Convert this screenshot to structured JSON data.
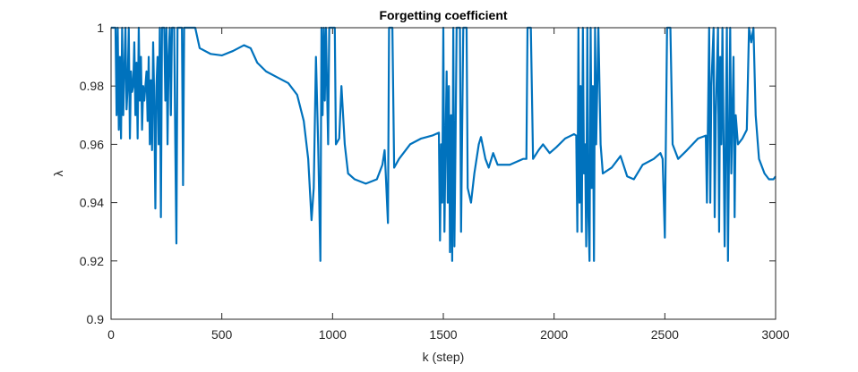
{
  "chart_data": {
    "type": "line",
    "title": "Forgetting coefficient",
    "x_label": "k (step)",
    "y_label": "λ",
    "xlim": [
      0,
      3000
    ],
    "xticks": [
      0,
      500,
      1000,
      1500,
      2000,
      2500,
      3000
    ],
    "ylim": [
      0.9,
      1
    ],
    "yticks": [
      0.9,
      0.92,
      0.94,
      0.96,
      0.98,
      1
    ],
    "series": [
      {
        "color": "#0072bd",
        "x": [
          0,
          20,
          25,
          30,
          35,
          40,
          45,
          50,
          55,
          60,
          65,
          70,
          75,
          80,
          85,
          90,
          95,
          100,
          105,
          110,
          115,
          120,
          125,
          130,
          135,
          140,
          145,
          150,
          160,
          165,
          170,
          175,
          180,
          185,
          190,
          195,
          200,
          205,
          210,
          215,
          220,
          225,
          230,
          240,
          245,
          250,
          255,
          260,
          265,
          270,
          275,
          285,
          290,
          295,
          300,
          320,
          325,
          330,
          340,
          380,
          400,
          450,
          500,
          550,
          600,
          630,
          660,
          700,
          750,
          800,
          840,
          870,
          890,
          905,
          915,
          925,
          935,
          945,
          950,
          955,
          960,
          965,
          970,
          975,
          980,
          985,
          1010,
          1015,
          1030,
          1040,
          1055,
          1070,
          1100,
          1150,
          1200,
          1225,
          1235,
          1240,
          1250,
          1255,
          1270,
          1278,
          1300,
          1350,
          1400,
          1450,
          1480,
          1485,
          1490,
          1495,
          1500,
          1505,
          1510,
          1515,
          1520,
          1525,
          1530,
          1535,
          1540,
          1545,
          1550,
          1555,
          1560,
          1575,
          1580,
          1590,
          1605,
          1610,
          1625,
          1640,
          1660,
          1670,
          1690,
          1705,
          1725,
          1745,
          1800,
          1860,
          1875,
          1880,
          1895,
          1905,
          1930,
          1950,
          1980,
          2010,
          2050,
          2090,
          2100,
          2105,
          2110,
          2115,
          2120,
          2125,
          2130,
          2135,
          2140,
          2145,
          2150,
          2155,
          2160,
          2165,
          2170,
          2175,
          2180,
          2185,
          2190,
          2200,
          2210,
          2220,
          2260,
          2300,
          2330,
          2360,
          2400,
          2450,
          2480,
          2490,
          2500,
          2510,
          2525,
          2535,
          2560,
          2600,
          2650,
          2685,
          2690,
          2700,
          2705,
          2710,
          2720,
          2725,
          2730,
          2740,
          2745,
          2750,
          2755,
          2760,
          2770,
          2780,
          2785,
          2790,
          2795,
          2800,
          2810,
          2815,
          2820,
          2830,
          2850,
          2870,
          2880,
          2890,
          2900,
          2910,
          2925,
          2950,
          2970,
          2990,
          3000
        ],
        "values": [
          1,
          1,
          0.97,
          1,
          0.965,
          0.99,
          0.962,
          1,
          0.97,
          0.985,
          1,
          0.972,
          0.98,
          1,
          0.962,
          0.985,
          0.978,
          0.98,
          0.995,
          0.97,
          0.988,
          0.962,
          1,
          0.975,
          0.99,
          0.965,
          0.98,
          0.975,
          0.985,
          0.968,
          0.99,
          0.96,
          0.982,
          0.958,
          0.995,
          0.975,
          0.938,
          0.98,
          0.99,
          0.96,
          1,
          0.935,
          1,
          1,
          0.975,
          1,
          0.96,
          0.99,
          1,
          0.97,
          1,
          1,
          0.96,
          0.926,
          1,
          1,
          0.946,
          1,
          1,
          1,
          0.993,
          0.991,
          0.9905,
          0.992,
          0.994,
          0.993,
          0.988,
          0.985,
          0.983,
          0.981,
          0.977,
          0.968,
          0.955,
          0.934,
          0.945,
          0.99,
          0.96,
          0.92,
          1,
          0.97,
          1,
          0.975,
          1,
          0.98,
          0.96,
          1,
          1,
          0.96,
          0.962,
          0.98,
          0.96,
          0.95,
          0.948,
          0.9465,
          0.948,
          0.953,
          0.958,
          0.95,
          0.933,
          1,
          1,
          0.952,
          0.955,
          0.96,
          0.962,
          0.963,
          0.964,
          0.927,
          0.96,
          0.94,
          1,
          0.93,
          0.96,
          0.985,
          0.94,
          0.98,
          0.923,
          0.97,
          0.92,
          1,
          0.925,
          0.96,
          1,
          1,
          0.93,
          1,
          1,
          0.945,
          0.94,
          0.95,
          0.96,
          0.9625,
          0.955,
          0.952,
          0.957,
          0.953,
          0.953,
          0.955,
          0.955,
          1,
          1,
          0.955,
          0.958,
          0.96,
          0.957,
          0.959,
          0.962,
          0.9635,
          0.963,
          0.93,
          1,
          0.94,
          0.98,
          0.93,
          1,
          0.95,
          0.96,
          0.925,
          1,
          0.935,
          0.92,
          1,
          0.945,
          0.98,
          0.92,
          1,
          0.96,
          1,
          0.96,
          0.95,
          0.952,
          0.956,
          0.949,
          0.948,
          0.953,
          0.955,
          0.957,
          0.955,
          0.928,
          1,
          1,
          0.96,
          0.955,
          0.958,
          0.962,
          0.963,
          0.94,
          1,
          0.94,
          0.98,
          1,
          0.935,
          0.97,
          1,
          0.93,
          0.99,
          0.96,
          1,
          0.925,
          1,
          0.92,
          0.96,
          1,
          0.95,
          0.99,
          0.935,
          0.97,
          0.96,
          0.962,
          0.965,
          1,
          0.995,
          1,
          0.97,
          0.955,
          0.95,
          0.948,
          0.948,
          0.949
        ]
      }
    ]
  }
}
